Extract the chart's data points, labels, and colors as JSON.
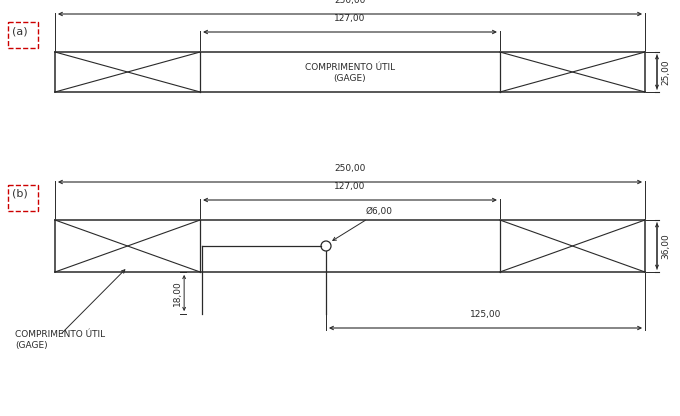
{
  "fig_width": 6.8,
  "fig_height": 4.16,
  "dpi": 100,
  "bg_color": "#ffffff",
  "line_color": "#2a2a2a",
  "font_size": 6.5,
  "label_font_size": 6.5,
  "diagram_a": {
    "label": "(a)",
    "text_line1": "COMPRIMENTO ÚTIL",
    "text_line2": "(GAGE)"
  },
  "diagram_b": {
    "label": "(b)",
    "text_line1": "COMPRIMENTO ÚTIL",
    "text_line2": "(GAGE)"
  }
}
